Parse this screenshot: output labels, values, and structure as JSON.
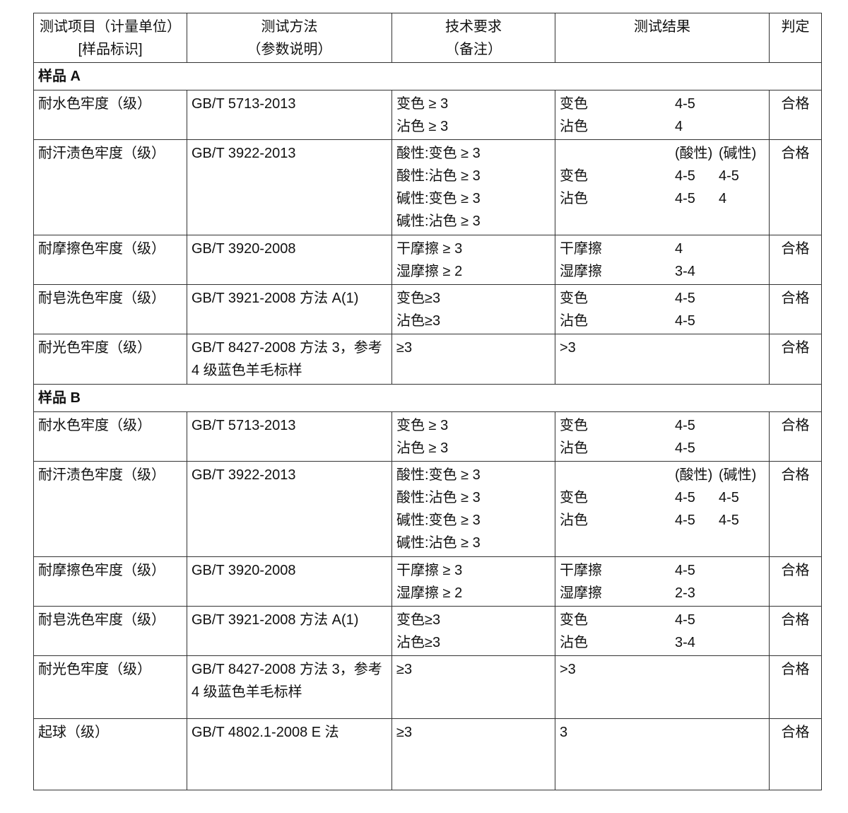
{
  "header": {
    "item": [
      "测试项目（计量单位）",
      "[样品标识]"
    ],
    "method": [
      "测试方法",
      "（参数说明）"
    ],
    "requirement": [
      "技术要求",
      "（备注）"
    ],
    "result": [
      "测试结果"
    ],
    "verdict": [
      "判定"
    ]
  },
  "sections": [
    {
      "title": "样品 A",
      "rows": [
        {
          "item": "耐水色牢度（级）",
          "method": "GB/T 5713-2013",
          "requirements": [
            "变色 ≥ 3",
            "沾色 ≥ 3"
          ],
          "results": [
            {
              "label": "变色",
              "values": [
                "4-5"
              ]
            },
            {
              "label": "沾色",
              "values": [
                "4"
              ]
            }
          ],
          "verdict": "合格"
        },
        {
          "item": "耐汗渍色牢度（级）",
          "method": "GB/T 3922-2013",
          "requirements": [
            "酸性:变色 ≥ 3",
            "酸性:沾色 ≥ 3",
            "碱性:变色 ≥ 3",
            "碱性:沾色 ≥ 3"
          ],
          "results": [
            {
              "label": "",
              "values": [
                "(酸性)",
                "(碱性)"
              ]
            },
            {
              "label": "变色",
              "values": [
                "4-5",
                "4-5"
              ]
            },
            {
              "label": "沾色",
              "values": [
                "4-5",
                "4"
              ]
            }
          ],
          "verdict": "合格"
        },
        {
          "item": "耐摩擦色牢度（级）",
          "method": "GB/T 3920-2008",
          "requirements": [
            "干摩擦 ≥ 3",
            "湿摩擦 ≥ 2"
          ],
          "results": [
            {
              "label": "干摩擦",
              "values": [
                "4"
              ]
            },
            {
              "label": "湿摩擦",
              "values": [
                "3-4"
              ]
            }
          ],
          "verdict": "合格"
        },
        {
          "item": "耐皂洗色牢度（级）",
          "method": "GB/T 3921-2008  方法  A(1)",
          "requirements": [
            "变色≥3",
            "沾色≥3"
          ],
          "results": [
            {
              "label": "变色",
              "values": [
                "4-5"
              ]
            },
            {
              "label": "沾色",
              "values": [
                "4-5"
              ]
            }
          ],
          "verdict": "合格"
        },
        {
          "item": "耐光色牢度（级）",
          "method": "GB/T 8427-2008  方法 3，参考 4 级蓝色羊毛标样",
          "requirements": [
            "≥3"
          ],
          "results": [
            {
              "label": ">3",
              "values": []
            }
          ],
          "verdict": "合格"
        }
      ]
    },
    {
      "title": "样品 B",
      "rows": [
        {
          "item": "耐水色牢度（级）",
          "method": "GB/T 5713-2013",
          "requirements": [
            "变色 ≥ 3",
            "沾色 ≥ 3"
          ],
          "results": [
            {
              "label": "变色",
              "values": [
                "4-5"
              ]
            },
            {
              "label": "沾色",
              "values": [
                "4-5"
              ]
            }
          ],
          "verdict": "合格"
        },
        {
          "item": "耐汗渍色牢度（级）",
          "method": "GB/T 3922-2013",
          "requirements": [
            "酸性:变色 ≥ 3",
            "酸性:沾色 ≥ 3",
            "碱性:变色 ≥ 3",
            "碱性:沾色 ≥ 3"
          ],
          "results": [
            {
              "label": "",
              "values": [
                "(酸性)",
                "(碱性)"
              ]
            },
            {
              "label": "变色",
              "values": [
                "4-5",
                "4-5"
              ]
            },
            {
              "label": "沾色",
              "values": [
                "4-5",
                "4-5"
              ]
            }
          ],
          "verdict": "合格"
        },
        {
          "item": "耐摩擦色牢度（级）",
          "method": "GB/T 3920-2008",
          "requirements": [
            "干摩擦 ≥ 3",
            "湿摩擦 ≥ 2"
          ],
          "results": [
            {
              "label": "干摩擦",
              "values": [
                "4-5"
              ]
            },
            {
              "label": "湿摩擦",
              "values": [
                "2-3"
              ]
            }
          ],
          "verdict": "合格"
        },
        {
          "item": "耐皂洗色牢度（级）",
          "method": "GB/T 3921-2008  方法  A(1)",
          "requirements": [
            "变色≥3",
            "沾色≥3"
          ],
          "results": [
            {
              "label": "变色",
              "values": [
                "4-5"
              ]
            },
            {
              "label": "沾色",
              "values": [
                "3-4"
              ]
            }
          ],
          "verdict": "合格"
        },
        {
          "item": "耐光色牢度（级）",
          "method": "GB/T 8427-2008  方法 3，参考 4 级蓝色羊毛标样",
          "requirements": [
            "≥3"
          ],
          "results": [
            {
              "label": ">3",
              "values": []
            }
          ],
          "verdict": "合格"
        },
        {
          "item": "起球（级）",
          "method": "GB/T 4802.1-2008 E 法",
          "requirements": [
            "≥3"
          ],
          "results": [
            {
              "label": "3",
              "values": []
            }
          ],
          "verdict": "合格"
        }
      ]
    }
  ]
}
